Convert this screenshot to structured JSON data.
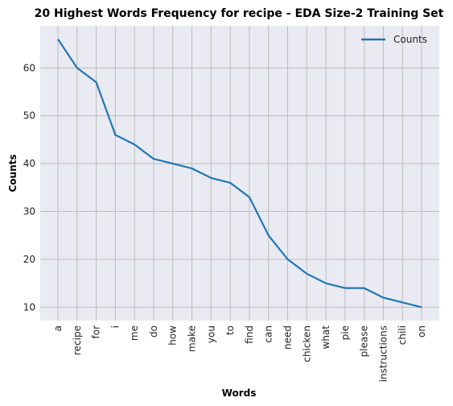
{
  "chart_data": {
    "type": "line",
    "title": "20 Highest Words Frequency for recipe - EDA Size-2 Training Set",
    "xlabel": "Words",
    "ylabel": "Counts",
    "categories": [
      "a",
      "recipe",
      "for",
      "i",
      "me",
      "do",
      "how",
      "make",
      "you",
      "to",
      "find",
      "can",
      "need",
      "chicken",
      "what",
      "pie",
      "please",
      "instructions",
      "chili",
      "on"
    ],
    "series": [
      {
        "name": "Counts",
        "color": "#1f77b4",
        "values": [
          66,
          60,
          57,
          46,
          44,
          41,
          40,
          39,
          37,
          36,
          33,
          25,
          20,
          17,
          15,
          14,
          14,
          12,
          11,
          10
        ]
      }
    ],
    "ylim": [
      7.2,
      68.8
    ],
    "yticks": [
      10,
      20,
      30,
      40,
      50,
      60
    ],
    "grid": true,
    "legend_position": "top-right",
    "background": "#eaeaf2",
    "grid_color": "#bdbdbd"
  }
}
